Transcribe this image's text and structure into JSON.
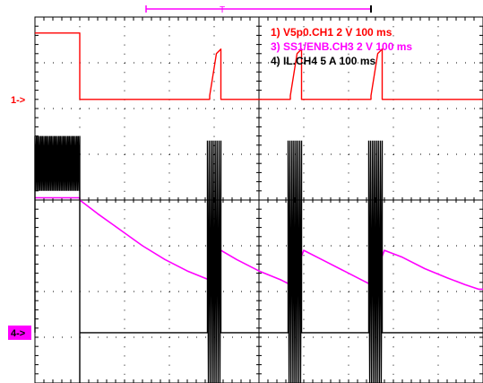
{
  "chart_data": {
    "type": "line",
    "title": "",
    "xlabel": "",
    "ylabel": "",
    "time_divisions": 10,
    "vertical_divisions": 8,
    "grid": true,
    "legend_position": "top-right",
    "trigger_window_marker": "T",
    "channel_markers": [
      {
        "id": "ch1",
        "label": "1->",
        "color": "#ff0000",
        "level_div": 6.2
      },
      {
        "id": "ch4",
        "label": "4->",
        "color": "#ff00ff",
        "box": true,
        "level_div": 1.1
      }
    ],
    "legend": [
      {
        "text": "1) V5p0.CH1  2  V    100 ms",
        "color": "#ff0000"
      },
      {
        "text": "3) SS1/ENB.CH3  2  V    100 ms",
        "color": "#ff00ff"
      },
      {
        "text": "4) IL.CH4  5  A    100 ms",
        "color": "#000000"
      }
    ],
    "series": [
      {
        "name": "V5p0.CH1",
        "color": "#ff0000",
        "units_per_div": "2 V",
        "time_per_div": "100 ms",
        "points": [
          [
            0,
            7.65
          ],
          [
            1.0,
            7.65
          ],
          [
            1.0,
            6.2
          ],
          [
            3.9,
            6.2
          ],
          [
            3.9,
            6.28
          ],
          [
            4.05,
            7.2
          ],
          [
            4.15,
            7.3
          ],
          [
            4.15,
            6.2
          ],
          [
            5.7,
            6.2
          ],
          [
            5.7,
            6.28
          ],
          [
            5.85,
            7.2
          ],
          [
            5.95,
            7.3
          ],
          [
            5.95,
            6.2
          ],
          [
            7.5,
            6.2
          ],
          [
            7.5,
            6.28
          ],
          [
            7.65,
            7.2
          ],
          [
            7.75,
            7.3
          ],
          [
            7.75,
            6.2
          ],
          [
            10,
            6.2
          ]
        ]
      },
      {
        "name": "SS1/ENB.CH3",
        "color": "#ff00ff",
        "units_per_div": "2 V",
        "time_per_div": "100 ms",
        "points": [
          [
            0,
            4.05
          ],
          [
            1.0,
            4.05
          ],
          [
            1.0,
            4.0
          ],
          [
            1.4,
            3.7
          ],
          [
            1.9,
            3.35
          ],
          [
            2.4,
            3.0
          ],
          [
            2.9,
            2.7
          ],
          [
            3.4,
            2.45
          ],
          [
            3.9,
            2.25
          ],
          [
            4.15,
            2.9
          ],
          [
            4.5,
            2.7
          ],
          [
            5.0,
            2.45
          ],
          [
            5.5,
            2.25
          ],
          [
            5.7,
            2.15
          ],
          [
            6.0,
            2.9
          ],
          [
            6.4,
            2.7
          ],
          [
            6.9,
            2.45
          ],
          [
            7.3,
            2.25
          ],
          [
            7.5,
            2.15
          ],
          [
            7.8,
            2.9
          ],
          [
            8.2,
            2.75
          ],
          [
            8.7,
            2.5
          ],
          [
            9.2,
            2.3
          ],
          [
            9.6,
            2.15
          ],
          [
            9.9,
            2.05
          ],
          [
            10,
            2.05
          ]
        ]
      },
      {
        "name": "IL.CH4",
        "color": "#000000",
        "units_per_div": "5 A",
        "time_per_div": "100 ms",
        "baseline_div": 1.1,
        "bursts": [
          {
            "start": 0.0,
            "end": 1.0,
            "low": 4.2,
            "high": 5.4
          },
          {
            "start": 3.85,
            "end": 4.15,
            "low": 0.0,
            "high": 5.3
          },
          {
            "start": 5.65,
            "end": 5.95,
            "low": 0.0,
            "high": 5.3
          },
          {
            "start": 7.45,
            "end": 7.75,
            "low": 0.0,
            "high": 5.3
          }
        ],
        "edges": [
          1.0
        ]
      }
    ]
  }
}
